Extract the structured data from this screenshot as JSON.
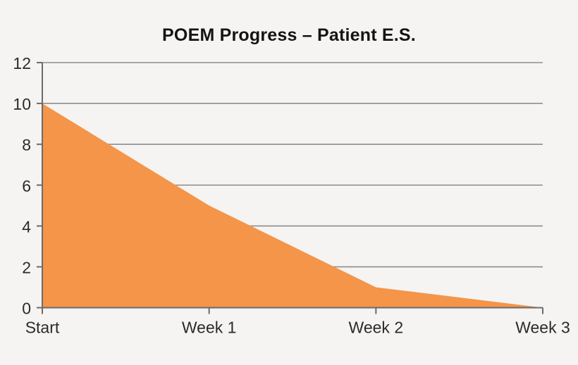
{
  "page": {
    "background": "#f5f4f2"
  },
  "chart_data": {
    "type": "area",
    "title": "POEM Progress – Patient E.S.",
    "categories": [
      "Start",
      "Week 1",
      "Week 2",
      "Week 3"
    ],
    "values": [
      10,
      5,
      1,
      0
    ],
    "xlabel": "",
    "ylabel": "",
    "ylim": [
      0,
      12
    ],
    "yticks": [
      0,
      2,
      4,
      6,
      8,
      10,
      12
    ],
    "grid": "horizontal",
    "legend": "none",
    "colors": {
      "area_fill": "#f4954a",
      "gridline": "#8d8d8d",
      "axis": "#6b6b6b",
      "tick": "#6b6b6b",
      "label_text": "#2b2b2b",
      "title_text": "#141414"
    }
  }
}
